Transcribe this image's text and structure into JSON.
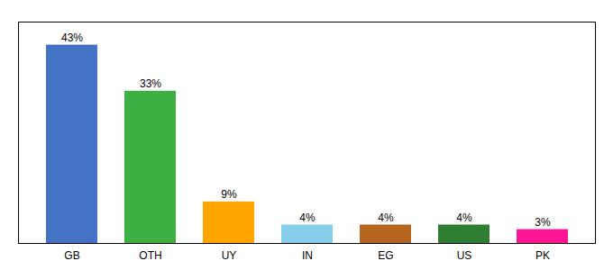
{
  "chart_data": {
    "type": "bar",
    "categories": [
      "GB",
      "OTH",
      "UY",
      "IN",
      "EG",
      "US",
      "PK"
    ],
    "values": [
      43,
      33,
      9,
      4,
      4,
      4,
      3
    ],
    "value_labels": [
      "43%",
      "33%",
      "9%",
      "4%",
      "4%",
      "4%",
      "3%"
    ],
    "colors": [
      "#4472C4",
      "#3DB043",
      "#FFA500",
      "#87CEEB",
      "#B5651D",
      "#2E7D32",
      "#FF1493"
    ],
    "ylim": [
      0,
      48
    ],
    "data_labels": true,
    "tick_labels": "x",
    "grid": false
  }
}
